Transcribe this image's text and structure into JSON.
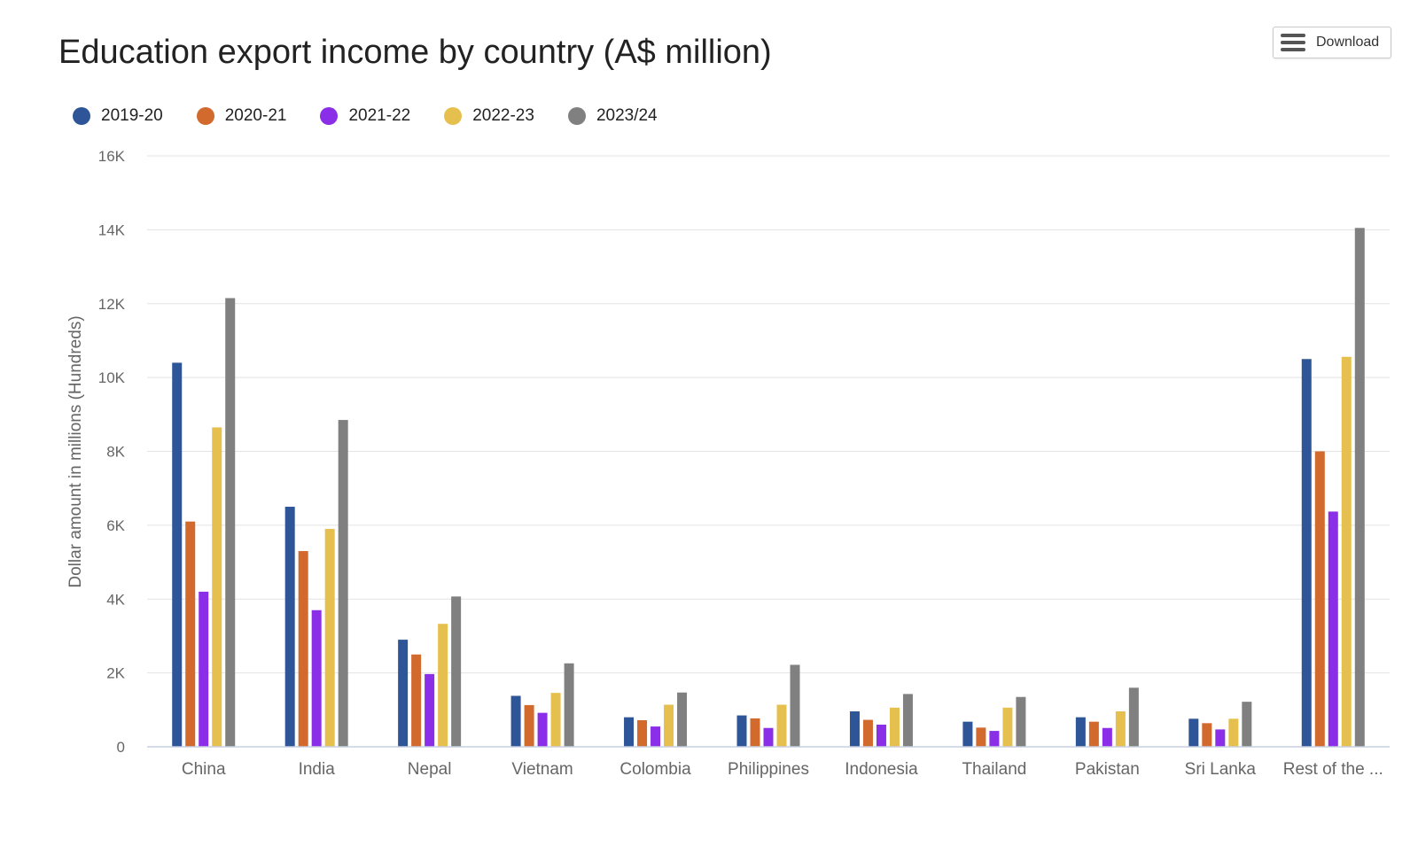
{
  "header": {
    "title": "Education export income by country (A$ million)",
    "download_label": "Download",
    "download_icon": "menu-icon"
  },
  "chart_data": {
    "type": "bar",
    "title": "Education export income by country (A$ million)",
    "ylabel": "Dollar amount in millions (Hundreds)",
    "xlabel": "",
    "ylim": [
      0,
      16000
    ],
    "yticks": [
      0,
      2000,
      4000,
      6000,
      8000,
      10000,
      12000,
      14000,
      16000
    ],
    "ytick_labels": [
      "0",
      "2K",
      "4K",
      "6K",
      "8K",
      "10K",
      "12K",
      "14K",
      "16K"
    ],
    "grid": true,
    "legend_position": "top-left",
    "categories": [
      "China",
      "India",
      "Nepal",
      "Vietnam",
      "Colombia",
      "Philippines",
      "Indonesia",
      "Thailand",
      "Pakistan",
      "Sri Lanka",
      "Rest of the ..."
    ],
    "series": [
      {
        "name": "2019-20",
        "color": "#2d5597",
        "values": [
          10400,
          6500,
          2900,
          1380,
          800,
          850,
          960,
          680,
          800,
          760,
          10500
        ]
      },
      {
        "name": "2020-21",
        "color": "#d2692d",
        "values": [
          6100,
          5300,
          2500,
          1130,
          720,
          770,
          730,
          520,
          680,
          640,
          8000
        ]
      },
      {
        "name": "2021-22",
        "color": "#8b2ee8",
        "values": [
          4200,
          3700,
          1970,
          920,
          550,
          510,
          600,
          430,
          510,
          470,
          6370
        ]
      },
      {
        "name": "2022-23",
        "color": "#e6c04f",
        "values": [
          8650,
          5900,
          3330,
          1460,
          1140,
          1140,
          1060,
          1060,
          960,
          760,
          10560
        ]
      },
      {
        "name": "2023/24",
        "color": "#808080",
        "values": [
          12150,
          8850,
          4070,
          2260,
          1470,
          2220,
          1430,
          1350,
          1600,
          1220,
          14050
        ]
      }
    ]
  }
}
